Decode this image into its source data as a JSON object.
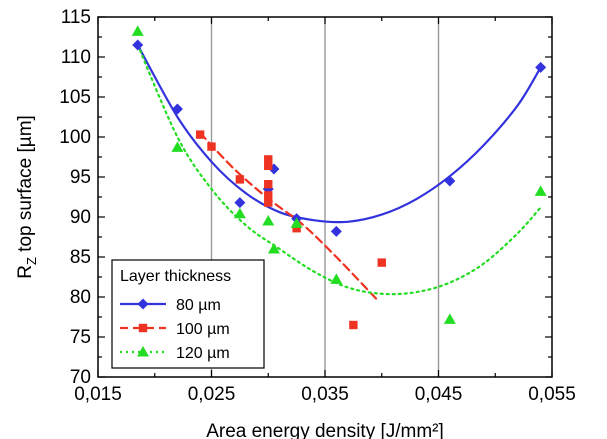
{
  "chart_data": {
    "type": "scatter",
    "xlabel": "Area energy density [J/mm²]",
    "ylabel_main": "R",
    "ylabel_sub": "Z",
    "ylabel_rest": " top surface [µm]",
    "xlim": [
      0.015,
      0.055
    ],
    "ylim": [
      70,
      115
    ],
    "x_ticks": [
      0.015,
      0.025,
      0.035,
      0.045,
      0.055
    ],
    "x_tick_labels": [
      "0,015",
      "0,025",
      "0,035",
      "0,045",
      "0,055"
    ],
    "y_ticks": [
      70,
      75,
      80,
      85,
      90,
      95,
      100,
      105,
      110,
      115
    ],
    "y_tick_labels": [
      "70",
      "75",
      "80",
      "85",
      "90",
      "95",
      "100",
      "105",
      "110",
      "115"
    ],
    "grid": "x-major",
    "legend": {
      "title": "Layer thickness",
      "placement": "bottom-left"
    },
    "series": [
      {
        "name": "80 µm",
        "color": "#3333dd",
        "marker": "diamond",
        "fit_style": "solid",
        "points": [
          [
            0.0185,
            111.5
          ],
          [
            0.022,
            103.5
          ],
          [
            0.0275,
            91.8
          ],
          [
            0.03,
            93.5
          ],
          [
            0.0305,
            96.0
          ],
          [
            0.0325,
            89.8
          ],
          [
            0.036,
            88.2
          ],
          [
            0.046,
            94.5
          ],
          [
            0.054,
            108.7
          ]
        ],
        "fit": [
          [
            0.0185,
            111.5
          ],
          [
            0.022,
            102.5
          ],
          [
            0.025,
            96.9
          ],
          [
            0.028,
            93.0
          ],
          [
            0.031,
            90.6
          ],
          [
            0.034,
            89.6
          ],
          [
            0.037,
            89.4
          ],
          [
            0.04,
            90.3
          ],
          [
            0.043,
            92.2
          ],
          [
            0.046,
            95.1
          ],
          [
            0.049,
            99.0
          ],
          [
            0.052,
            104.0
          ],
          [
            0.054,
            108.7
          ]
        ]
      },
      {
        "name": "100 µm",
        "color": "#ee3322",
        "marker": "square",
        "fit_style": "dashed",
        "points": [
          [
            0.024,
            100.3
          ],
          [
            0.025,
            98.8
          ],
          [
            0.0275,
            94.7
          ],
          [
            0.03,
            97.2
          ],
          [
            0.03,
            96.4
          ],
          [
            0.03,
            94.1
          ],
          [
            0.03,
            92.7
          ],
          [
            0.03,
            91.8
          ],
          [
            0.0325,
            88.6
          ],
          [
            0.0375,
            76.5
          ],
          [
            0.04,
            84.3
          ]
        ],
        "fit": [
          [
            0.024,
            100.5
          ],
          [
            0.027,
            96.0
          ],
          [
            0.03,
            92.3
          ],
          [
            0.033,
            89.1
          ],
          [
            0.036,
            85.0
          ],
          [
            0.0395,
            79.8
          ]
        ]
      },
      {
        "name": "120 µm",
        "color": "#22dd22",
        "marker": "triangle",
        "fit_style": "dotted",
        "points": [
          [
            0.0185,
            113.2
          ],
          [
            0.022,
            98.7
          ],
          [
            0.0275,
            90.4
          ],
          [
            0.03,
            89.5
          ],
          [
            0.0305,
            86.0
          ],
          [
            0.0325,
            89.2
          ],
          [
            0.036,
            82.2
          ],
          [
            0.046,
            77.2
          ],
          [
            0.054,
            93.2
          ]
        ],
        "fit": [
          [
            0.0185,
            111.5
          ],
          [
            0.022,
            100.0
          ],
          [
            0.025,
            93.5
          ],
          [
            0.028,
            89.0
          ],
          [
            0.031,
            86.0
          ],
          [
            0.034,
            83.2
          ],
          [
            0.037,
            81.2
          ],
          [
            0.04,
            80.4
          ],
          [
            0.043,
            80.6
          ],
          [
            0.046,
            81.8
          ],
          [
            0.049,
            84.2
          ],
          [
            0.052,
            88.0
          ],
          [
            0.054,
            91.2
          ]
        ]
      }
    ]
  }
}
